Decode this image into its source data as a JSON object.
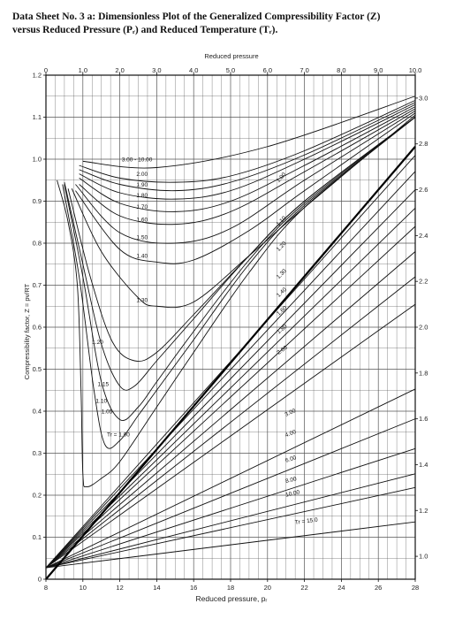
{
  "title": {
    "line1": "Data Sheet No. 3 a: Dimensionless Plot of the Generalized Compressibility Factor (Z)",
    "line2": "versus Reduced Pressure (Pᵣ) and Reduced Temperature (Tᵣ)."
  },
  "chart_data": {
    "type": "line",
    "title": "",
    "top_axis": {
      "label": "Reduced pressure",
      "range": [
        0,
        10
      ],
      "tick_values": [
        0,
        1,
        2,
        3,
        4,
        5,
        6,
        7,
        8,
        9,
        10
      ],
      "tick_labels": [
        "0",
        "1.0",
        "2.0",
        "3.0",
        "4.0",
        "5.0",
        "6.0",
        "7.0",
        "8.0",
        "9.0",
        "10.0"
      ]
    },
    "bottom_axis": {
      "label": "Reduced pressure, pᵣ",
      "range": [
        8,
        28
      ],
      "tick_values": [
        8,
        10,
        12,
        14,
        16,
        18,
        20,
        22,
        24,
        26,
        28
      ],
      "tick_labels": [
        "8",
        "10",
        "12",
        "14",
        "16",
        "18",
        "20",
        "22",
        "24",
        "26",
        "28"
      ]
    },
    "left_axis": {
      "label": "Compressibility factor, Z = pv/RT",
      "range": [
        0,
        1.2
      ],
      "tick_values": [
        0,
        0.1,
        0.2,
        0.3,
        0.4,
        0.5,
        0.6,
        0.7,
        0.8,
        0.9,
        1.0,
        1.1,
        1.2
      ],
      "tick_labels": [
        "0",
        "0.1",
        "0.2",
        "0.3",
        "0.4",
        "0.5",
        "0.6",
        "0.7",
        "0.8",
        "0.9",
        "1.0",
        "1.1",
        "1.2"
      ]
    },
    "right_axis": {
      "range": [
        0.9,
        3.1
      ],
      "tick_values": [
        1.0,
        1.2,
        1.4,
        1.6,
        1.8,
        2.0,
        2.2,
        2.4,
        2.6,
        2.8,
        3.0
      ],
      "tick_labels": [
        "1.0",
        "1.2",
        "1.4",
        "1.6",
        "1.8",
        "2.0",
        "2.2",
        "2.4",
        "2.6",
        "2.8",
        "3.0"
      ]
    },
    "grid": true,
    "low_pressure_series": [
      {
        "name": "3.00 - 10.00",
        "label_at": [
          2.05,
          0.995
        ],
        "points": [
          [
            1.0,
            0.995
          ],
          [
            3.0,
            0.98
          ],
          [
            6.0,
            1.03
          ],
          [
            10.0,
            1.15
          ]
        ]
      },
      {
        "name": "2.00",
        "label_at": [
          2.45,
          0.96
        ],
        "points": [
          [
            0.9,
            0.985
          ],
          [
            2.0,
            0.955
          ],
          [
            3.5,
            0.945
          ],
          [
            5.0,
            0.96
          ],
          [
            7.0,
            1.02
          ],
          [
            10.0,
            1.14
          ]
        ]
      },
      {
        "name": "1.90",
        "label_at": [
          2.45,
          0.935
        ],
        "points": [
          [
            0.9,
            0.975
          ],
          [
            2.0,
            0.94
          ],
          [
            3.5,
            0.925
          ],
          [
            5.0,
            0.945
          ],
          [
            7.0,
            1.01
          ],
          [
            10.0,
            1.135
          ]
        ]
      },
      {
        "name": "1.80",
        "label_at": [
          2.45,
          0.91
        ],
        "points": [
          [
            0.9,
            0.965
          ],
          [
            2.0,
            0.92
          ],
          [
            3.5,
            0.905
          ],
          [
            5.0,
            0.925
          ],
          [
            7.0,
            1.0
          ],
          [
            10.0,
            1.13
          ]
        ]
      },
      {
        "name": "1.70",
        "label_at": [
          2.45,
          0.882
        ],
        "points": [
          [
            0.9,
            0.955
          ],
          [
            2.0,
            0.895
          ],
          [
            3.5,
            0.875
          ],
          [
            5.0,
            0.9
          ],
          [
            7.0,
            0.985
          ],
          [
            10.0,
            1.125
          ]
        ]
      },
      {
        "name": "1.60",
        "label_at": [
          2.45,
          0.852
        ],
        "points": [
          [
            0.9,
            0.94
          ],
          [
            2.0,
            0.865
          ],
          [
            3.5,
            0.845
          ],
          [
            5.0,
            0.875
          ],
          [
            7.0,
            0.97
          ],
          [
            10.0,
            1.12
          ]
        ]
      },
      {
        "name": "1.50",
        "label_at": [
          2.45,
          0.81
        ],
        "points": [
          [
            0.8,
            0.94
          ],
          [
            2.0,
            0.825
          ],
          [
            3.5,
            0.8
          ],
          [
            5.0,
            0.835
          ],
          [
            7.0,
            0.95
          ],
          [
            10.0,
            1.115
          ]
        ]
      },
      {
        "name": "1.40",
        "label_at": [
          2.45,
          0.765
        ],
        "points": [
          [
            0.8,
            0.925
          ],
          [
            2.0,
            0.785
          ],
          [
            3.0,
            0.755
          ],
          [
            4.0,
            0.76
          ],
          [
            5.5,
            0.83
          ],
          [
            7.0,
            0.925
          ],
          [
            10.0,
            1.11
          ]
        ]
      },
      {
        "name": "1.30",
        "label_at": [
          2.45,
          0.66
        ],
        "points": [
          [
            0.7,
            0.93
          ],
          [
            1.5,
            0.78
          ],
          [
            2.5,
            0.67
          ],
          [
            3.0,
            0.65
          ],
          [
            4.0,
            0.66
          ],
          [
            5.5,
            0.77
          ],
          [
            7.0,
            0.885
          ],
          [
            10.0,
            1.105
          ]
        ]
      },
      {
        "name": "1.20",
        "label_at": [
          1.25,
          0.56
        ],
        "points": [
          [
            0.6,
            0.93
          ],
          [
            1.2,
            0.72
          ],
          [
            1.8,
            0.565
          ],
          [
            2.4,
            0.52
          ],
          [
            3.0,
            0.54
          ],
          [
            4.0,
            0.63
          ],
          [
            5.5,
            0.77
          ],
          [
            7.0,
            0.9
          ],
          [
            10.0,
            1.1
          ]
        ]
      },
      {
        "name": "1.15",
        "label_at": [
          1.4,
          0.46
        ],
        "points": [
          [
            0.5,
            0.945
          ],
          [
            1.0,
            0.75
          ],
          [
            1.5,
            0.56
          ],
          [
            2.0,
            0.46
          ],
          [
            2.4,
            0.46
          ],
          [
            3.0,
            0.52
          ],
          [
            4.0,
            0.62
          ],
          [
            5.5,
            0.77
          ],
          [
            7.0,
            0.9
          ],
          [
            10.0,
            1.1
          ]
        ]
      },
      {
        "name": "1.10",
        "label_at": [
          1.35,
          0.42
        ],
        "points": [
          [
            0.5,
            0.94
          ],
          [
            1.0,
            0.72
          ],
          [
            1.5,
            0.47
          ],
          [
            2.0,
            0.38
          ],
          [
            2.5,
            0.41
          ],
          [
            3.0,
            0.47
          ],
          [
            4.0,
            0.59
          ],
          [
            5.5,
            0.76
          ],
          [
            7.0,
            0.895
          ],
          [
            10.0,
            1.1
          ]
        ]
      },
      {
        "name": "1.05",
        "label_at": [
          1.5,
          0.395
        ],
        "points": [
          [
            0.45,
            0.94
          ],
          [
            0.9,
            0.72
          ],
          [
            1.3,
            0.45
          ],
          [
            1.6,
            0.32
          ],
          [
            2.0,
            0.33
          ],
          [
            2.5,
            0.39
          ],
          [
            3.0,
            0.45
          ],
          [
            4.0,
            0.57
          ],
          [
            5.5,
            0.75
          ],
          [
            7.0,
            0.89
          ],
          [
            10.0,
            1.1
          ]
        ]
      },
      {
        "name": "Tr = 1.00",
        "label_at": [
          1.65,
          0.34
        ],
        "points": [
          [
            0.3,
            0.95
          ],
          [
            0.6,
            0.85
          ],
          [
            0.85,
            0.7
          ],
          [
            0.95,
            0.45
          ],
          [
            1.0,
            0.25
          ],
          [
            1.1,
            0.22
          ],
          [
            1.5,
            0.24
          ],
          [
            2.0,
            0.28
          ],
          [
            3.0,
            0.41
          ],
          [
            4.0,
            0.54
          ],
          [
            5.5,
            0.73
          ],
          [
            7.0,
            0.885
          ],
          [
            10.0,
            1.1
          ]
        ]
      }
    ],
    "high_pressure_series": [
      {
        "name": "1.00",
        "label_at": [
          20.6,
          2.63
        ],
        "points": [
          [
            8,
            0.95
          ],
          [
            28,
            2.75
          ]
        ]
      },
      {
        "name": "1.10",
        "label_at": [
          20.6,
          2.44
        ],
        "points": [
          [
            8,
            0.95
          ],
          [
            28,
            2.68
          ]
        ]
      },
      {
        "name": "1.20",
        "label_at": [
          20.6,
          2.33
        ],
        "points": [
          [
            8,
            0.95
          ],
          [
            28,
            2.6
          ]
        ]
      },
      {
        "name": "1.30",
        "label_at": [
          20.6,
          2.21
        ],
        "points": [
          [
            8,
            0.95
          ],
          [
            28,
            2.52
          ]
        ]
      },
      {
        "name": "1.40",
        "label_at": [
          20.6,
          2.13
        ],
        "points": [
          [
            8,
            0.95
          ],
          [
            28,
            2.44
          ]
        ]
      },
      {
        "name": "1.60",
        "label_at": [
          20.6,
          2.05
        ],
        "points": [
          [
            8,
            0.95
          ],
          [
            28,
            2.33
          ]
        ]
      },
      {
        "name": "1.80",
        "label_at": [
          20.6,
          1.97
        ],
        "points": [
          [
            8,
            0.95
          ],
          [
            28,
            2.22
          ]
        ]
      },
      {
        "name": "2.00",
        "label_at": [
          20.6,
          1.88
        ],
        "points": [
          [
            8,
            0.95
          ],
          [
            28,
            2.1
          ]
        ]
      },
      {
        "name": "3.00",
        "label_at": [
          21.0,
          1.61
        ],
        "points": [
          [
            8,
            0.95
          ],
          [
            28,
            1.73
          ]
        ]
      },
      {
        "name": "4.00",
        "label_at": [
          21.0,
          1.52
        ],
        "points": [
          [
            8,
            0.95
          ],
          [
            28,
            1.6
          ]
        ]
      },
      {
        "name": "6.00",
        "label_at": [
          21.0,
          1.41
        ],
        "points": [
          [
            8,
            0.95
          ],
          [
            28,
            1.47
          ]
        ]
      },
      {
        "name": "8.00",
        "label_at": [
          21.0,
          1.32
        ],
        "points": [
          [
            8,
            0.95
          ],
          [
            28,
            1.36
          ]
        ]
      },
      {
        "name": "10.00",
        "label_at": [
          21.0,
          1.26
        ],
        "points": [
          [
            8,
            0.95
          ],
          [
            28,
            1.3
          ]
        ]
      },
      {
        "name": "Tr = 15.0",
        "label_at": [
          21.5,
          1.14
        ],
        "points": [
          [
            8,
            0.95
          ],
          [
            28,
            1.15
          ]
        ]
      }
    ],
    "diagonal_reference": {
      "points": [
        [
          0,
          0
        ],
        [
          10,
          1.03
        ]
      ]
    }
  }
}
